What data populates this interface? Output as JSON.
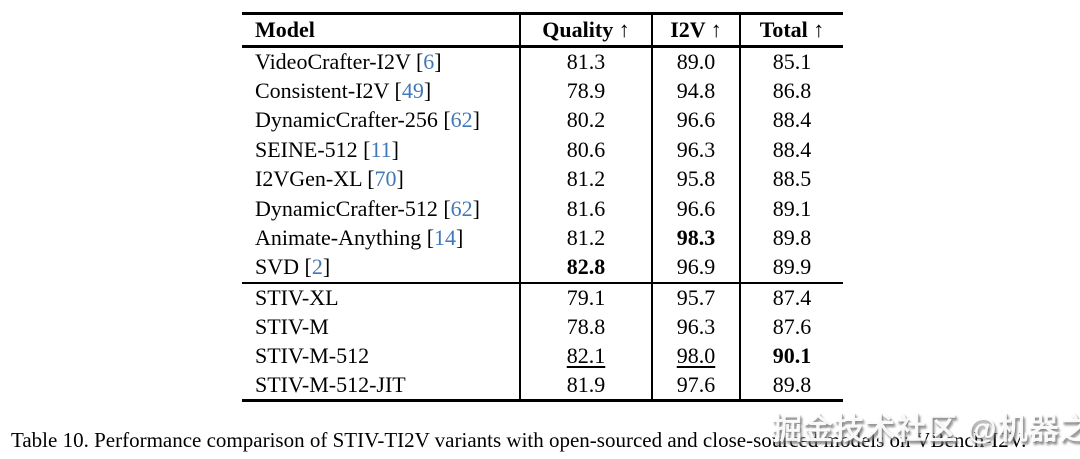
{
  "colors": {
    "citation_blue": "#4178b8",
    "text": "#000000",
    "background": "#ffffff"
  },
  "caption": "Table 10. Performance comparison of STIV-TI2V variants with open-sourced and close-sourced models on VBench-I2V.",
  "watermark": "掘金技术社区 @机器之心",
  "chart_data": {
    "type": "table",
    "title": "Table 10. Performance comparison of STIV-TI2V variants with open-sourced and close-sourced models on VBench-I2V.",
    "columns": [
      "Model",
      "Quality ↑",
      "I2V ↑",
      "Total ↑"
    ]
  },
  "table": {
    "columns": [
      {
        "label": "Model",
        "arrow": ""
      },
      {
        "label": "Quality",
        "arrow": "↑"
      },
      {
        "label": "I2V",
        "arrow": "↑"
      },
      {
        "label": "Total",
        "arrow": "↑"
      }
    ],
    "groups": [
      {
        "name": "baselines",
        "rows": [
          {
            "model": "VideoCrafter-I2V",
            "cite": "6",
            "values": [
              {
                "text": "81.3",
                "style": ""
              },
              {
                "text": "89.0",
                "style": ""
              },
              {
                "text": "85.1",
                "style": ""
              }
            ]
          },
          {
            "model": "Consistent-I2V",
            "cite": "49",
            "values": [
              {
                "text": "78.9",
                "style": ""
              },
              {
                "text": "94.8",
                "style": ""
              },
              {
                "text": "86.8",
                "style": ""
              }
            ]
          },
          {
            "model": "DynamicCrafter-256",
            "cite": "62",
            "values": [
              {
                "text": "80.2",
                "style": ""
              },
              {
                "text": "96.6",
                "style": ""
              },
              {
                "text": "88.4",
                "style": ""
              }
            ]
          },
          {
            "model": "SEINE-512",
            "cite": "11",
            "values": [
              {
                "text": "80.6",
                "style": ""
              },
              {
                "text": "96.3",
                "style": ""
              },
              {
                "text": "88.4",
                "style": ""
              }
            ]
          },
          {
            "model": "I2VGen-XL",
            "cite": "70",
            "values": [
              {
                "text": "81.2",
                "style": ""
              },
              {
                "text": "95.8",
                "style": ""
              },
              {
                "text": "88.5",
                "style": ""
              }
            ]
          },
          {
            "model": "DynamicCrafter-512",
            "cite": "62",
            "values": [
              {
                "text": "81.6",
                "style": ""
              },
              {
                "text": "96.6",
                "style": ""
              },
              {
                "text": "89.1",
                "style": ""
              }
            ]
          },
          {
            "model": "Animate-Anything",
            "cite": "14",
            "values": [
              {
                "text": "81.2",
                "style": ""
              },
              {
                "text": "98.3",
                "style": "bold"
              },
              {
                "text": "89.8",
                "style": ""
              }
            ]
          },
          {
            "model": "SVD",
            "cite": "2",
            "values": [
              {
                "text": "82.8",
                "style": "bold"
              },
              {
                "text": "96.9",
                "style": ""
              },
              {
                "text": "89.9",
                "style": ""
              }
            ]
          }
        ]
      },
      {
        "name": "stiv-variants",
        "rows": [
          {
            "model": "STIV-XL",
            "cite": null,
            "values": [
              {
                "text": "79.1",
                "style": ""
              },
              {
                "text": "95.7",
                "style": ""
              },
              {
                "text": "87.4",
                "style": ""
              }
            ]
          },
          {
            "model": "STIV-M",
            "cite": null,
            "values": [
              {
                "text": "78.8",
                "style": ""
              },
              {
                "text": "96.3",
                "style": ""
              },
              {
                "text": "87.6",
                "style": ""
              }
            ]
          },
          {
            "model": "STIV-M-512",
            "cite": null,
            "values": [
              {
                "text": "82.1",
                "style": "underline"
              },
              {
                "text": "98.0",
                "style": "underline"
              },
              {
                "text": "90.1",
                "style": "bold"
              }
            ]
          },
          {
            "model": "STIV-M-512-JIT",
            "cite": null,
            "values": [
              {
                "text": "81.9",
                "style": ""
              },
              {
                "text": "97.6",
                "style": ""
              },
              {
                "text": "89.8",
                "style": ""
              }
            ]
          }
        ]
      }
    ]
  }
}
